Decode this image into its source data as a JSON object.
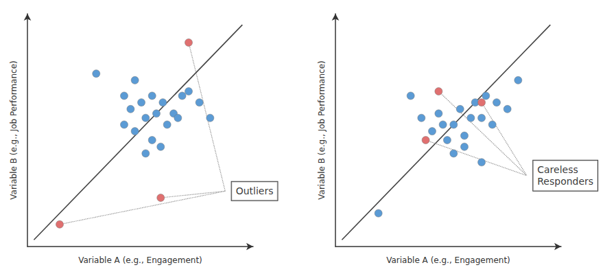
{
  "chart_data": [
    {
      "type": "scatter",
      "xlabel": "Variable A (e.g., Engagement)",
      "ylabel": "Variable B (e.g., Job Performance)",
      "xlim": [
        0,
        10.5
      ],
      "ylim": [
        0,
        10.5
      ],
      "tick_labels": false,
      "grid": false,
      "series": [
        {
          "type": "line",
          "color": "#444444",
          "values": [
            [
              0.3,
              0.3
            ],
            [
              10.0,
              10.0
            ]
          ]
        },
        {
          "type": "scatter",
          "color": "#5b9bd5",
          "values": [
            [
              3.2,
              7.8
            ],
            [
              4.5,
              6.8
            ],
            [
              5.0,
              7.5
            ],
            [
              4.8,
              6.2
            ],
            [
              5.3,
              6.5
            ],
            [
              5.8,
              6.8
            ],
            [
              5.5,
              5.8
            ],
            [
              6.0,
              6.0
            ],
            [
              6.3,
              6.5
            ],
            [
              6.5,
              5.5
            ],
            [
              6.8,
              6.0
            ],
            [
              7.0,
              5.8
            ],
            [
              7.2,
              6.8
            ],
            [
              7.5,
              7.0
            ],
            [
              8.0,
              6.5
            ],
            [
              8.5,
              5.8
            ],
            [
              5.0,
              5.2
            ],
            [
              5.8,
              4.8
            ],
            [
              4.5,
              5.5
            ],
            [
              5.5,
              4.2
            ],
            [
              6.2,
              4.5
            ]
          ]
        },
        {
          "type": "scatter",
          "color": "#e07070",
          "values": [
            [
              1.5,
              1.0
            ],
            [
              6.2,
              2.2
            ],
            [
              7.5,
              9.2
            ]
          ]
        }
      ],
      "annotation": {
        "text": "Outliers",
        "x": 9.5,
        "y": 2.5
      }
    },
    {
      "type": "scatter",
      "xlabel": "Variable A (e.g., Engagement)",
      "ylabel": "Variable B (e.g., Job Performance)",
      "xlim": [
        0,
        10.5
      ],
      "ylim": [
        0,
        10.5
      ],
      "tick_labels": false,
      "grid": false,
      "series": [
        {
          "type": "line",
          "color": "#444444",
          "values": [
            [
              0.3,
              0.3
            ],
            [
              10.0,
              10.0
            ]
          ]
        },
        {
          "type": "scatter",
          "color": "#5b9bd5",
          "values": [
            [
              2.0,
              1.5
            ],
            [
              3.5,
              6.8
            ],
            [
              4.0,
              5.8
            ],
            [
              4.5,
              5.2
            ],
            [
              4.8,
              6.0
            ],
            [
              5.0,
              5.5
            ],
            [
              5.2,
              4.8
            ],
            [
              5.5,
              5.5
            ],
            [
              5.8,
              6.2
            ],
            [
              6.0,
              5.0
            ],
            [
              6.3,
              5.8
            ],
            [
              6.5,
              6.5
            ],
            [
              6.8,
              5.8
            ],
            [
              7.0,
              6.8
            ],
            [
              7.3,
              5.5
            ],
            [
              7.5,
              6.5
            ],
            [
              8.0,
              6.2
            ],
            [
              8.5,
              7.5
            ],
            [
              5.5,
              4.2
            ],
            [
              6.0,
              4.5
            ],
            [
              6.8,
              3.8
            ]
          ]
        },
        {
          "type": "scatter",
          "color": "#e07070",
          "values": [
            [
              4.8,
              7.0
            ],
            [
              4.2,
              4.8
            ],
            [
              6.8,
              6.5
            ]
          ]
        }
      ],
      "annotation": {
        "text": "Careless\nResponders",
        "x": 9.2,
        "y": 3.2
      }
    }
  ]
}
